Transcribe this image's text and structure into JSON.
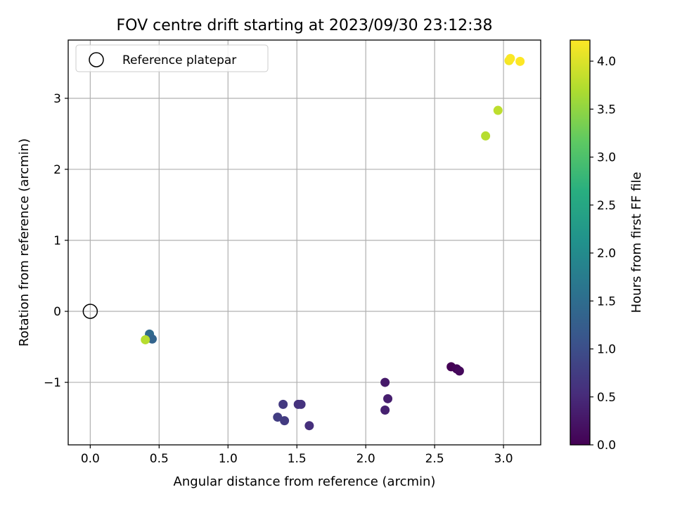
{
  "chart_data": {
    "type": "scatter",
    "title": "FOV centre drift starting at 2023/09/30 23:12:38",
    "xlabel": "Angular distance from reference (arcmin)",
    "ylabel": "Rotation from reference (arcmin)",
    "xlim": [
      -0.16,
      3.27
    ],
    "ylim": [
      -1.88,
      3.82
    ],
    "xticks": [
      0.0,
      0.5,
      1.0,
      1.5,
      2.0,
      2.5,
      3.0
    ],
    "xtick_labels": [
      "0.0",
      "0.5",
      "1.0",
      "1.5",
      "2.0",
      "2.5",
      "3.0"
    ],
    "yticks": [
      -1,
      0,
      1,
      2,
      3
    ],
    "ytick_labels": [
      "−1",
      "0",
      "1",
      "2",
      "3"
    ],
    "grid": true,
    "legend": {
      "position": "top-left",
      "entries": [
        "Reference platepar"
      ]
    },
    "reference_point": {
      "x": 0.0,
      "y": 0.0
    },
    "colorbar": {
      "label": "Hours from first FF file",
      "min": 0.0,
      "max": 4.22,
      "ticks": [
        0.0,
        0.5,
        1.0,
        1.5,
        2.0,
        2.5,
        3.0,
        3.5,
        4.0
      ],
      "tick_labels": [
        "0.0",
        "0.5",
        "1.0",
        "1.5",
        "2.0",
        "2.5",
        "3.0",
        "3.5",
        "4.0"
      ],
      "colormap": "viridis"
    },
    "points": [
      {
        "x": 2.62,
        "y": -0.78,
        "c": 0.0
      },
      {
        "x": 2.66,
        "y": -0.81,
        "c": 0.05
      },
      {
        "x": 2.68,
        "y": -0.84,
        "c": 0.1
      },
      {
        "x": 2.14,
        "y": -1.0,
        "c": 0.3
      },
      {
        "x": 2.16,
        "y": -1.23,
        "c": 0.35
      },
      {
        "x": 2.14,
        "y": -1.39,
        "c": 0.38
      },
      {
        "x": 1.59,
        "y": -1.61,
        "c": 0.55
      },
      {
        "x": 1.51,
        "y": -1.31,
        "c": 0.6
      },
      {
        "x": 1.53,
        "y": -1.31,
        "c": 0.62
      },
      {
        "x": 1.4,
        "y": -1.31,
        "c": 0.7
      },
      {
        "x": 1.41,
        "y": -1.54,
        "c": 0.72
      },
      {
        "x": 1.36,
        "y": -1.49,
        "c": 0.75
      },
      {
        "x": 0.43,
        "y": -0.32,
        "c": 1.45
      },
      {
        "x": 0.45,
        "y": -0.39,
        "c": 1.35
      },
      {
        "x": 0.4,
        "y": -0.4,
        "c": 3.75
      },
      {
        "x": 2.87,
        "y": 2.47,
        "c": 3.75
      },
      {
        "x": 2.96,
        "y": 2.83,
        "c": 3.8
      },
      {
        "x": 3.04,
        "y": 3.53,
        "c": 4.15
      },
      {
        "x": 3.05,
        "y": 3.56,
        "c": 4.2
      },
      {
        "x": 3.12,
        "y": 3.52,
        "c": 4.22
      }
    ]
  }
}
